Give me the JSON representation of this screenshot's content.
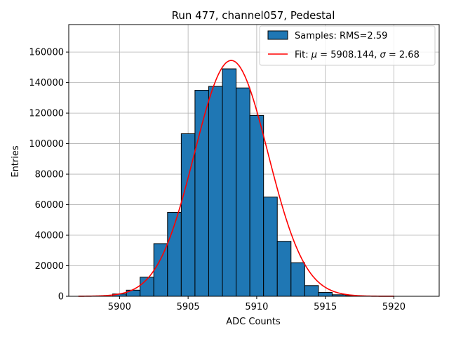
{
  "chart_data": {
    "type": "bar",
    "title": "Run 477, channel057, Pedestal",
    "xlabel": "ADC Counts",
    "ylabel": "Entries",
    "xlim": [
      5896.3,
      5923.3
    ],
    "ylim": [
      0,
      178000
    ],
    "xticks": [
      5900,
      5905,
      5910,
      5915,
      5920
    ],
    "yticks": [
      0,
      20000,
      40000,
      60000,
      80000,
      100000,
      120000,
      140000,
      160000
    ],
    "grid": true,
    "legend_position": "top-right",
    "bin_width": 1,
    "bins": [
      {
        "x": 5900,
        "y": 1500
      },
      {
        "x": 5901,
        "y": 4000
      },
      {
        "x": 5902,
        "y": 12500
      },
      {
        "x": 5903,
        "y": 34500
      },
      {
        "x": 5904,
        "y": 55000
      },
      {
        "x": 5905,
        "y": 106500
      },
      {
        "x": 5906,
        "y": 135000
      },
      {
        "x": 5907,
        "y": 137500
      },
      {
        "x": 5908,
        "y": 149000
      },
      {
        "x": 5909,
        "y": 136500
      },
      {
        "x": 5910,
        "y": 118500
      },
      {
        "x": 5911,
        "y": 65000
      },
      {
        "x": 5912,
        "y": 36000
      },
      {
        "x": 5913,
        "y": 22000
      },
      {
        "x": 5914,
        "y": 7000
      },
      {
        "x": 5915,
        "y": 2500
      },
      {
        "x": 5916,
        "y": 1000
      },
      {
        "x": 5917,
        "y": 400
      }
    ],
    "fit": {
      "type": "gaussian",
      "mu": 5908.144,
      "sigma": 2.68,
      "amplitude": 154500,
      "x_range": [
        5897,
        5920
      ]
    },
    "series": [
      {
        "name": "Samples: RMS=2.59",
        "kind": "histogram",
        "color": "#1f77b4"
      },
      {
        "name": "Fit: μ = 5908.144, σ = 2.68",
        "kind": "line",
        "color": "#ff0000"
      }
    ],
    "legend": {
      "hist_prefix": "Samples: RMS=2.59",
      "fit_parts": [
        "Fit: ",
        "μ",
        " = 5908.144, ",
        "σ",
        " = 2.68"
      ]
    }
  }
}
